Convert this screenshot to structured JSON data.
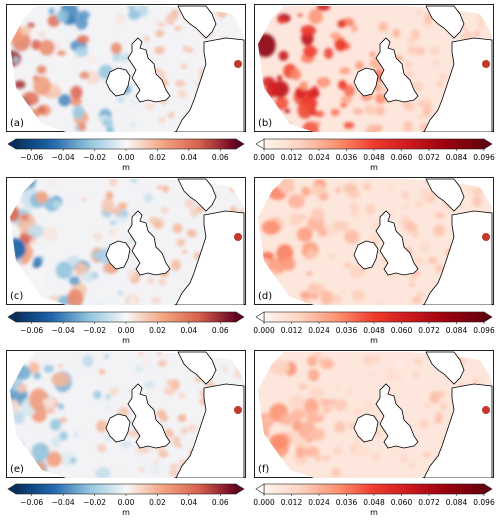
{
  "figure": {
    "panels": [
      {
        "id": "a",
        "label": "(a)",
        "type": "signed",
        "row": 0,
        "col": 0,
        "intensity": 1.0
      },
      {
        "id": "b",
        "label": "(b)",
        "type": "magnitude",
        "row": 0,
        "col": 1,
        "intensity": 1.0
      },
      {
        "id": "c",
        "label": "(c)",
        "type": "signed",
        "row": 1,
        "col": 0,
        "intensity": 0.75
      },
      {
        "id": "d",
        "label": "(d)",
        "type": "magnitude",
        "row": 1,
        "col": 1,
        "intensity": 0.45
      },
      {
        "id": "e",
        "label": "(e)",
        "type": "signed",
        "row": 2,
        "col": 0,
        "intensity": 0.55
      },
      {
        "id": "f",
        "label": "(f)",
        "type": "magnitude",
        "row": 2,
        "col": 1,
        "intensity": 0.4
      }
    ],
    "colorbars": {
      "signed": {
        "unit": "m",
        "range": [
          -0.07,
          0.07
        ],
        "ticks": [
          "−0.06",
          "−0.04",
          "−0.02",
          "0.00",
          "0.02",
          "0.04",
          "0.06"
        ],
        "tick_values": [
          -0.06,
          -0.04,
          -0.02,
          0.0,
          0.02,
          0.04,
          0.06
        ],
        "colormap": "RdBu_r"
      },
      "magnitude": {
        "unit": "m",
        "range": [
          0.0,
          0.096
        ],
        "ticks": [
          "0.000",
          "0.012",
          "0.024",
          "0.036",
          "0.048",
          "0.060",
          "0.072",
          "0.084",
          "0.096"
        ],
        "tick_values": [
          0.0,
          0.012,
          0.024,
          0.036,
          0.048,
          0.06,
          0.072,
          0.084,
          0.096
        ],
        "colormap": "Reds"
      }
    },
    "colors": {
      "dark_blue": "#053061",
      "blue": "#2166ac",
      "light_blue": "#92c5de",
      "white": "#f7f7f7",
      "light_red": "#f4a582",
      "red": "#d6604d",
      "dark_red": "#67001f",
      "coast": "#000000"
    }
  }
}
